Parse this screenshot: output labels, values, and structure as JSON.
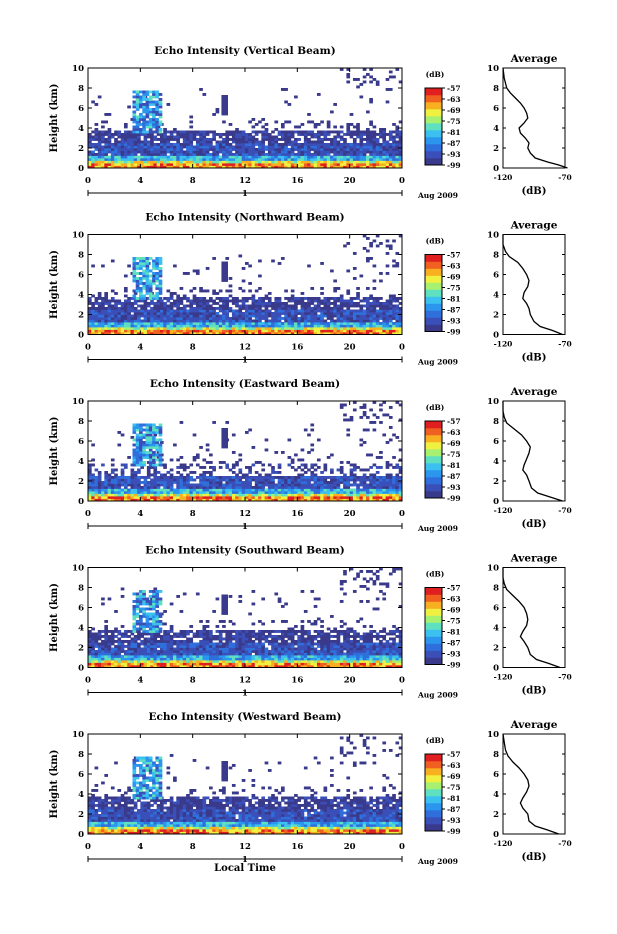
{
  "chart_data": [
    {
      "type": "heatmap",
      "title": "Echo Intensity (Vertical Beam)",
      "ylabel": "Height (km)",
      "x_ticks": [
        "0",
        "4",
        "8",
        "12",
        "16",
        "20",
        "0"
      ],
      "y_ticks": [
        "0",
        "2",
        "4",
        "6",
        "8",
        "10"
      ],
      "xlim": [
        0,
        24
      ],
      "ylim": [
        0,
        10
      ],
      "day_label": "1",
      "date_label": "Aug 2009",
      "colorbar": {
        "unit": "(dB)",
        "ticks": [
          "-57",
          "-63",
          "-69",
          "-75",
          "-81",
          "-87",
          "-93",
          "-99"
        ],
        "range": [
          -99,
          -57
        ]
      },
      "average": {
        "title": "Average",
        "xlabel": "(dB)",
        "x_ticks": [
          "-120",
          "-70"
        ],
        "xlim": [
          -120,
          -70
        ],
        "y_ticks": [
          "0",
          "2",
          "4",
          "6",
          "8",
          "10"
        ],
        "profile": [
          [
            -68,
            0
          ],
          [
            -75,
            0.3
          ],
          [
            -84,
            0.6
          ],
          [
            -94,
            1.0
          ],
          [
            -98,
            1.5
          ],
          [
            -100,
            2.0
          ],
          [
            -99,
            2.5
          ],
          [
            -102,
            3.0
          ],
          [
            -106,
            3.5
          ],
          [
            -107,
            4.0
          ],
          [
            -103,
            4.5
          ],
          [
            -100,
            5.0
          ],
          [
            -101,
            5.5
          ],
          [
            -103,
            6.0
          ],
          [
            -106,
            6.5
          ],
          [
            -110,
            7.0
          ],
          [
            -114,
            7.5
          ],
          [
            -117,
            8.0
          ],
          [
            -119,
            9.0
          ],
          [
            -120,
            10.0
          ]
        ]
      }
    },
    {
      "type": "heatmap",
      "title": "Echo Intensity (Northward Beam)",
      "ylabel": "Height (km)",
      "x_ticks": [
        "0",
        "4",
        "8",
        "12",
        "16",
        "20",
        "0"
      ],
      "y_ticks": [
        "0",
        "2",
        "4",
        "6",
        "8",
        "10"
      ],
      "xlim": [
        0,
        24
      ],
      "ylim": [
        0,
        10
      ],
      "day_label": "1",
      "date_label": "Aug 2009",
      "colorbar": {
        "unit": "(dB)",
        "ticks": [
          "-57",
          "-63",
          "-69",
          "-75",
          "-81",
          "-87",
          "-93",
          "-99"
        ],
        "range": [
          -99,
          -57
        ]
      },
      "average": {
        "title": "Average",
        "xlabel": "(dB)",
        "x_ticks": [
          "-120",
          "-70"
        ],
        "xlim": [
          -120,
          -70
        ],
        "y_ticks": [
          "0",
          "2",
          "4",
          "6",
          "8",
          "10"
        ],
        "profile": [
          [
            -72,
            0
          ],
          [
            -80,
            0.4
          ],
          [
            -90,
            0.8
          ],
          [
            -95,
            1.3
          ],
          [
            -98,
            2.0
          ],
          [
            -99,
            2.6
          ],
          [
            -101,
            3.1
          ],
          [
            -104,
            3.6
          ],
          [
            -103,
            4.2
          ],
          [
            -100,
            4.8
          ],
          [
            -99,
            5.4
          ],
          [
            -101,
            6.0
          ],
          [
            -104,
            6.6
          ],
          [
            -108,
            7.2
          ],
          [
            -115,
            7.8
          ],
          [
            -118,
            8.3
          ],
          [
            -120,
            9.0
          ],
          [
            -120,
            10.0
          ]
        ]
      }
    },
    {
      "type": "heatmap",
      "title": "Echo Intensity (Eastward Beam)",
      "ylabel": "Height (km)",
      "x_ticks": [
        "0",
        "4",
        "8",
        "12",
        "16",
        "20",
        "0"
      ],
      "y_ticks": [
        "0",
        "2",
        "4",
        "6",
        "8",
        "10"
      ],
      "xlim": [
        0,
        24
      ],
      "ylim": [
        0,
        10
      ],
      "day_label": "1",
      "date_label": "Aug 2009",
      "colorbar": {
        "unit": "(dB)",
        "ticks": [
          "-57",
          "-63",
          "-69",
          "-75",
          "-81",
          "-87",
          "-93",
          "-99"
        ],
        "range": [
          -99,
          -57
        ]
      },
      "average": {
        "title": "Average",
        "xlabel": "(dB)",
        "x_ticks": [
          "-120",
          "-70"
        ],
        "xlim": [
          -120,
          -70
        ],
        "y_ticks": [
          "0",
          "2",
          "4",
          "6",
          "8",
          "10"
        ],
        "profile": [
          [
            -72,
            0
          ],
          [
            -82,
            0.4
          ],
          [
            -92,
            0.8
          ],
          [
            -97,
            1.3
          ],
          [
            -99,
            2.0
          ],
          [
            -101,
            2.6
          ],
          [
            -104,
            3.1
          ],
          [
            -103,
            3.6
          ],
          [
            -101,
            4.2
          ],
          [
            -99,
            4.8
          ],
          [
            -98,
            5.4
          ],
          [
            -101,
            6.0
          ],
          [
            -105,
            6.6
          ],
          [
            -111,
            7.2
          ],
          [
            -117,
            7.8
          ],
          [
            -119,
            8.4
          ],
          [
            -120,
            9.0
          ],
          [
            -120,
            10.0
          ]
        ]
      }
    },
    {
      "type": "heatmap",
      "title": "Echo Intensity (Southward Beam)",
      "ylabel": "Height (km)",
      "x_ticks": [
        "0",
        "4",
        "8",
        "12",
        "16",
        "20",
        "0"
      ],
      "y_ticks": [
        "0",
        "2",
        "4",
        "6",
        "8",
        "10"
      ],
      "xlim": [
        0,
        24
      ],
      "ylim": [
        0,
        10
      ],
      "day_label": "1",
      "date_label": "Aug 2009",
      "colorbar": {
        "unit": "(dB)",
        "ticks": [
          "-57",
          "-63",
          "-69",
          "-75",
          "-81",
          "-87",
          "-93",
          "-99"
        ],
        "range": [
          -99,
          -57
        ]
      },
      "average": {
        "title": "Average",
        "xlabel": "(dB)",
        "x_ticks": [
          "-120",
          "-70"
        ],
        "xlim": [
          -120,
          -70
        ],
        "y_ticks": [
          "0",
          "2",
          "4",
          "6",
          "8",
          "10"
        ],
        "profile": [
          [
            -74,
            0
          ],
          [
            -83,
            0.4
          ],
          [
            -93,
            0.8
          ],
          [
            -98,
            1.3
          ],
          [
            -100,
            2.0
          ],
          [
            -103,
            2.6
          ],
          [
            -106,
            3.1
          ],
          [
            -104,
            3.6
          ],
          [
            -101,
            4.2
          ],
          [
            -100,
            4.8
          ],
          [
            -101,
            5.4
          ],
          [
            -103,
            6.0
          ],
          [
            -107,
            6.6
          ],
          [
            -112,
            7.2
          ],
          [
            -117,
            7.8
          ],
          [
            -119,
            8.4
          ],
          [
            -120,
            9.0
          ],
          [
            -120,
            10.0
          ]
        ]
      }
    },
    {
      "type": "heatmap",
      "title": "Echo Intensity (Westward Beam)",
      "ylabel": "Height (km)",
      "xlabel": "Local Time",
      "x_ticks": [
        "0",
        "4",
        "8",
        "12",
        "16",
        "20",
        "0"
      ],
      "y_ticks": [
        "0",
        "2",
        "4",
        "6",
        "8",
        "10"
      ],
      "xlim": [
        0,
        24
      ],
      "ylim": [
        0,
        10
      ],
      "day_label": "1",
      "date_label": "Aug 2009",
      "colorbar": {
        "unit": "(dB)",
        "ticks": [
          "-57",
          "-63",
          "-69",
          "-75",
          "-81",
          "-87",
          "-93",
          "-99"
        ],
        "range": [
          -99,
          -57
        ]
      },
      "average": {
        "title": "Average",
        "xlabel": "(dB)",
        "x_ticks": [
          "-120",
          "-70"
        ],
        "xlim": [
          -120,
          -70
        ],
        "y_ticks": [
          "0",
          "2",
          "4",
          "6",
          "8",
          "10"
        ],
        "profile": [
          [
            -75,
            0
          ],
          [
            -84,
            0.4
          ],
          [
            -94,
            0.8
          ],
          [
            -99,
            1.3
          ],
          [
            -100,
            2.0
          ],
          [
            -104,
            2.6
          ],
          [
            -106,
            3.1
          ],
          [
            -104,
            3.6
          ],
          [
            -101,
            4.2
          ],
          [
            -99,
            4.8
          ],
          [
            -100,
            5.4
          ],
          [
            -103,
            6.0
          ],
          [
            -107,
            6.6
          ],
          [
            -112,
            7.2
          ],
          [
            -116,
            7.8
          ],
          [
            -118,
            8.4
          ],
          [
            -119,
            9.2
          ],
          [
            -120,
            10.0
          ]
        ]
      }
    }
  ],
  "colors": {
    "colormap": [
      "#3a3a8c",
      "#3b4fb8",
      "#2f6fdc",
      "#2a96ee",
      "#3cc0f0",
      "#5fe0c0",
      "#a8f070",
      "#f0f040",
      "#f8b020",
      "#f06020",
      "#e02020"
    ],
    "background": "#ffffff"
  }
}
